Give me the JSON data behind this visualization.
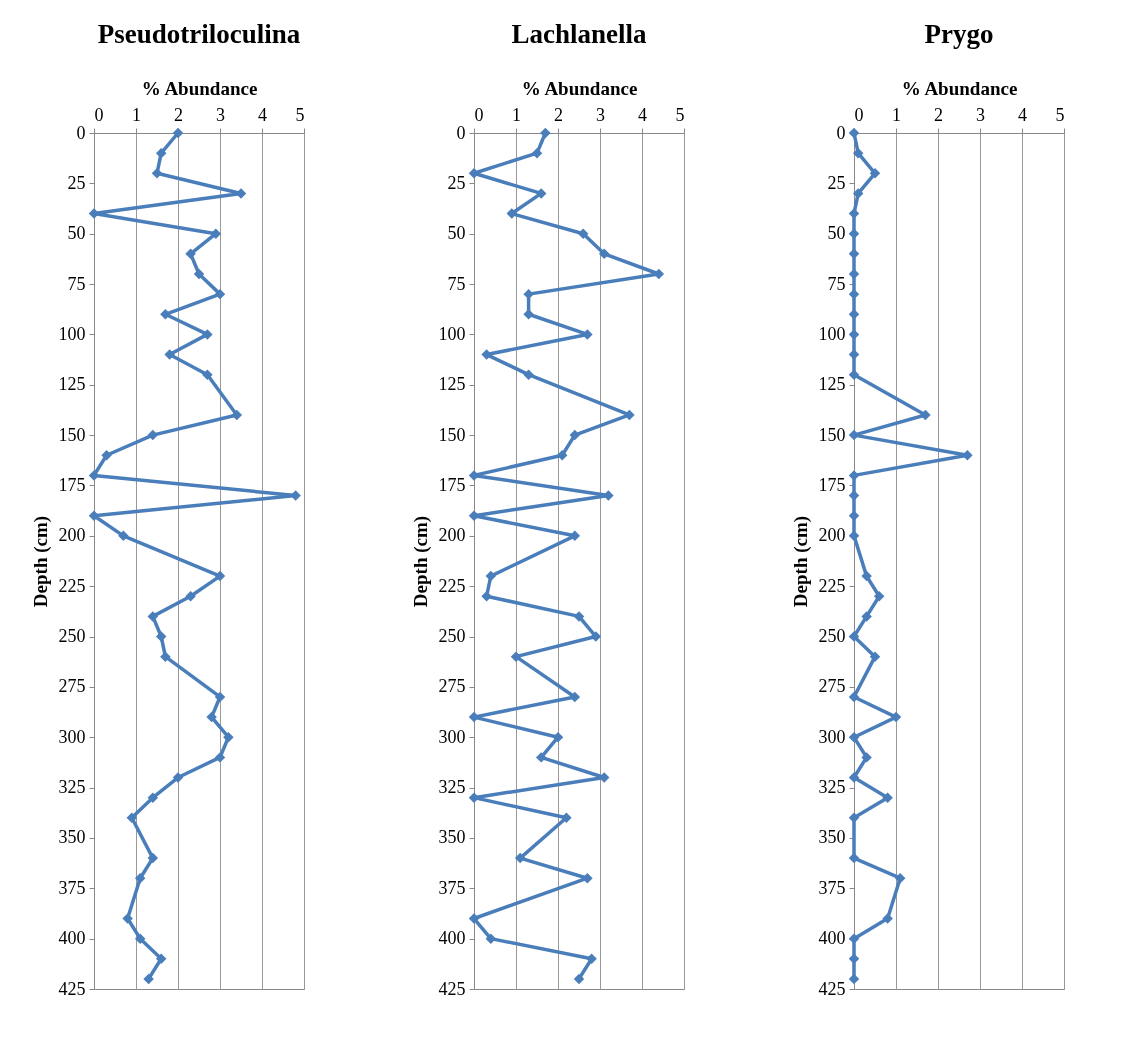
{
  "chart_data": [
    {
      "type": "line",
      "title": "Pseudotriloculina",
      "xlabel": "% Abundance",
      "ylabel": "Depth (cm)",
      "orientation": "horizontal",
      "marker": "diamond",
      "line_style": "solid",
      "grid": "x",
      "xlim": [
        0,
        5
      ],
      "xticks": [
        0,
        1,
        2,
        3,
        4,
        5
      ],
      "ylim": [
        425,
        0
      ],
      "yticks": [
        0,
        25,
        50,
        75,
        100,
        125,
        150,
        175,
        200,
        225,
        250,
        275,
        300,
        325,
        350,
        375,
        400,
        425
      ],
      "x": [
        0,
        10,
        20,
        30,
        40,
        50,
        60,
        70,
        80,
        90,
        100,
        110,
        120,
        140,
        150,
        160,
        170,
        180,
        190,
        200,
        220,
        230,
        240,
        250,
        260,
        280,
        290,
        300,
        310,
        320,
        330,
        340,
        360,
        370,
        390,
        400,
        410,
        420
      ],
      "series": [
        {
          "color": "#4a7ebb",
          "values": [
            2.0,
            1.6,
            1.5,
            3.5,
            0,
            2.9,
            2.3,
            2.5,
            3.0,
            1.7,
            2.7,
            1.8,
            2.7,
            3.4,
            1.4,
            0.3,
            0,
            4.8,
            0,
            0.7,
            3.0,
            2.3,
            1.4,
            1.6,
            1.7,
            3.0,
            2.8,
            3.2,
            3.0,
            2.0,
            1.4,
            0.9,
            1.4,
            1.1,
            0.8,
            1.1,
            1.6,
            1.3
          ]
        }
      ]
    },
    {
      "type": "line",
      "title": "Lachlanella",
      "xlabel": "% Abundance",
      "ylabel": "Depth (cm)",
      "orientation": "horizontal",
      "marker": "diamond",
      "line_style": "solid",
      "grid": "x",
      "xlim": [
        0,
        5
      ],
      "xticks": [
        0,
        1,
        2,
        3,
        4,
        5
      ],
      "ylim": [
        425,
        0
      ],
      "yticks": [
        0,
        25,
        50,
        75,
        100,
        125,
        150,
        175,
        200,
        225,
        250,
        275,
        300,
        325,
        350,
        375,
        400,
        425
      ],
      "x": [
        0,
        10,
        20,
        30,
        40,
        50,
        60,
        70,
        80,
        90,
        100,
        110,
        120,
        140,
        150,
        160,
        170,
        180,
        190,
        200,
        220,
        230,
        240,
        250,
        260,
        280,
        290,
        300,
        310,
        320,
        330,
        340,
        360,
        370,
        390,
        400,
        410,
        420
      ],
      "series": [
        {
          "color": "#4a7ebb",
          "values": [
            1.7,
            1.5,
            0,
            1.6,
            0.9,
            2.6,
            3.1,
            4.4,
            1.3,
            1.3,
            2.7,
            0.3,
            1.3,
            3.7,
            2.4,
            2.1,
            0,
            3.2,
            0,
            2.4,
            0.4,
            0.3,
            2.5,
            2.9,
            1.0,
            2.4,
            0,
            2.0,
            1.6,
            3.1,
            0,
            2.2,
            1.1,
            2.7,
            0,
            0.4,
            2.8,
            2.5
          ]
        }
      ]
    },
    {
      "type": "line",
      "title": "Prygo",
      "xlabel": "% Abundance",
      "ylabel": "Depth (cm)",
      "orientation": "horizontal",
      "marker": "diamond",
      "line_style": "solid",
      "grid": "x",
      "xlim": [
        0,
        5
      ],
      "xticks": [
        0,
        1,
        2,
        3,
        4,
        5
      ],
      "ylim": [
        425,
        0
      ],
      "yticks": [
        0,
        25,
        50,
        75,
        100,
        125,
        150,
        175,
        200,
        225,
        250,
        275,
        300,
        325,
        350,
        375,
        400,
        425
      ],
      "x": [
        0,
        10,
        20,
        30,
        40,
        50,
        60,
        70,
        80,
        90,
        100,
        110,
        120,
        140,
        150,
        160,
        170,
        180,
        190,
        200,
        220,
        230,
        240,
        250,
        260,
        280,
        290,
        300,
        310,
        320,
        330,
        340,
        360,
        370,
        390,
        400,
        410,
        420
      ],
      "series": [
        {
          "color": "#4a7ebb",
          "values": [
            0,
            0.1,
            0.5,
            0.1,
            0,
            0,
            0,
            0,
            0,
            0,
            0,
            0,
            0,
            1.7,
            0,
            2.7,
            0,
            0,
            0,
            0,
            0.3,
            0.6,
            0.3,
            0,
            0.5,
            0,
            1.0,
            0,
            0.3,
            0,
            0.8,
            0,
            0,
            1.1,
            0.8,
            0,
            0,
            0
          ]
        }
      ]
    }
  ]
}
